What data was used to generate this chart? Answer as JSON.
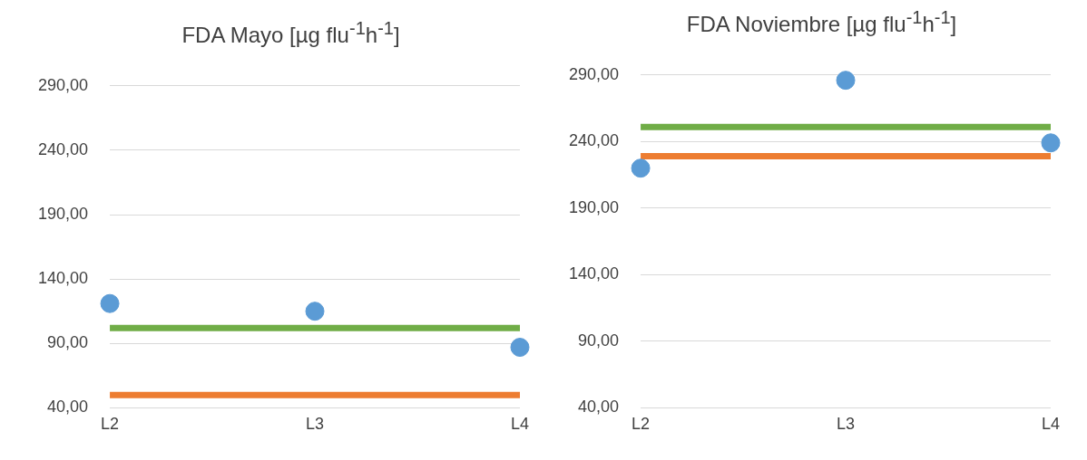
{
  "chart_data": [
    {
      "type": "scatter",
      "title": "FDA Mayo [µg flu$^{-1}$h$^{-1}$]",
      "categories": [
        "L2",
        "L3",
        "L4"
      ],
      "ylim": [
        40,
        290
      ],
      "yticks": [
        {
          "value": 40,
          "label": "40,00"
        },
        {
          "value": 90,
          "label": "90,00"
        },
        {
          "value": 140,
          "label": "140,00"
        },
        {
          "value": 190,
          "label": "190,00"
        },
        {
          "value": 240,
          "label": "240,00"
        },
        {
          "value": 290,
          "label": "290,00"
        }
      ],
      "grid": "y",
      "legend": false,
      "marker": "circle",
      "series": [
        {
          "color": "#5b9bd5",
          "values": [
            121,
            115,
            87
          ]
        },
        {
          "type": "line",
          "color": "#70ad47",
          "values": [
            102,
            102,
            102
          ],
          "marker": "none"
        },
        {
          "type": "line",
          "color": "#ed7d31",
          "values": [
            50,
            50,
            50
          ],
          "marker": "none"
        }
      ]
    },
    {
      "type": "scatter",
      "title": "FDA Noviembre [µg flu$^{-1}$h$^{-1}$]",
      "categories": [
        "L2",
        "L3",
        "L4"
      ],
      "ylim": [
        40,
        290
      ],
      "yticks": [
        {
          "value": 40,
          "label": "40,00"
        },
        {
          "value": 90,
          "label": "90,00"
        },
        {
          "value": 140,
          "label": "140,00"
        },
        {
          "value": 190,
          "label": "190,00"
        },
        {
          "value": 240,
          "label": "240,00"
        },
        {
          "value": 290,
          "label": "290,00"
        }
      ],
      "grid": "y",
      "legend": false,
      "marker": "circle",
      "series": [
        {
          "color": "#5b9bd5",
          "values": [
            220,
            286,
            239
          ]
        },
        {
          "type": "line",
          "color": "#70ad47",
          "values": [
            251,
            251,
            251
          ],
          "marker": "none"
        },
        {
          "type": "line",
          "color": "#ed7d31",
          "values": [
            229,
            229,
            229
          ],
          "marker": "none"
        }
      ]
    }
  ]
}
